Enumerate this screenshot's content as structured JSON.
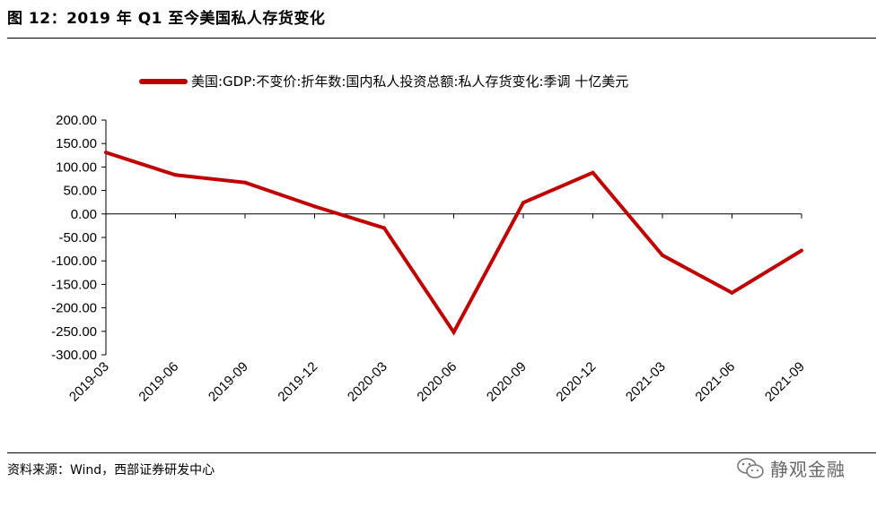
{
  "figure": {
    "title": "图 12：2019 年 Q1 至今美国私人存货变化",
    "source": "资料来源：Wind，西部证券研发中心",
    "watermark": "静观金融",
    "watermark_icon": "wechat-icon"
  },
  "colors": {
    "line": "#C00000",
    "axis": "#000000",
    "watermark": "#666666"
  },
  "chart_data": {
    "type": "line",
    "title": "",
    "xlabel": "",
    "ylabel": "",
    "ylim": [
      -300,
      200
    ],
    "ytick_step": 50,
    "yticks": [
      "200.00",
      "150.00",
      "100.00",
      "50.00",
      "0.00",
      "-50.00",
      "-100.00",
      "-150.00",
      "-200.00",
      "-250.00",
      "-300.00"
    ],
    "categories": [
      "2019-03",
      "2019-06",
      "2019-09",
      "2019-12",
      "2020-03",
      "2020-06",
      "2020-09",
      "2020-12",
      "2021-03",
      "2021-06",
      "2021-09"
    ],
    "grid": false,
    "legend_position": "top",
    "series": [
      {
        "name": "美国:GDP:不变价:折年数:国内私人投资总额:私人存货变化:季调 十亿美元",
        "values": [
          131,
          83,
          67,
          16,
          -30,
          -252,
          24,
          88,
          -88,
          -168,
          -78
        ]
      }
    ]
  }
}
